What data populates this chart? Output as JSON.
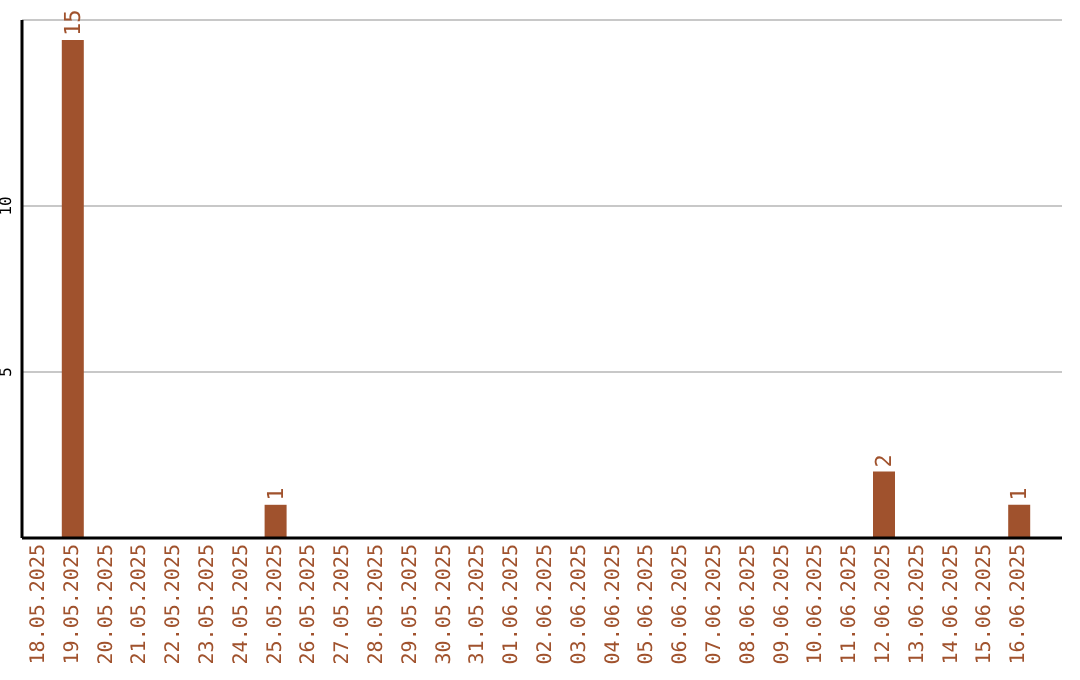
{
  "chart_data": {
    "type": "bar",
    "categories": [
      "18.05.2025",
      "19.05.2025",
      "20.05.2025",
      "21.05.2025",
      "22.05.2025",
      "23.05.2025",
      "24.05.2025",
      "25.05.2025",
      "26.05.2025",
      "27.05.2025",
      "28.05.2025",
      "29.05.2025",
      "30.05.2025",
      "31.05.2025",
      "01.06.2025",
      "02.06.2025",
      "03.06.2025",
      "04.06.2025",
      "05.06.2025",
      "06.06.2025",
      "07.06.2025",
      "08.06.2025",
      "09.06.2025",
      "10.06.2025",
      "11.06.2025",
      "12.06.2025",
      "13.06.2025",
      "14.06.2025",
      "15.06.2025",
      "16.06.2025"
    ],
    "values": [
      0,
      15,
      0,
      0,
      0,
      0,
      0,
      1,
      0,
      0,
      0,
      0,
      0,
      0,
      0,
      0,
      0,
      0,
      0,
      0,
      0,
      0,
      0,
      0,
      0,
      2,
      0,
      0,
      0,
      1
    ],
    "value_labels": [
      null,
      "15",
      null,
      null,
      null,
      null,
      null,
      "1",
      null,
      null,
      null,
      null,
      null,
      null,
      null,
      null,
      null,
      null,
      null,
      null,
      null,
      null,
      null,
      null,
      null,
      "2",
      null,
      null,
      null,
      "1"
    ],
    "color": "#a0522d",
    "ylim": [
      0,
      15.6
    ],
    "yticks": [
      5,
      10
    ],
    "grid": "y"
  }
}
